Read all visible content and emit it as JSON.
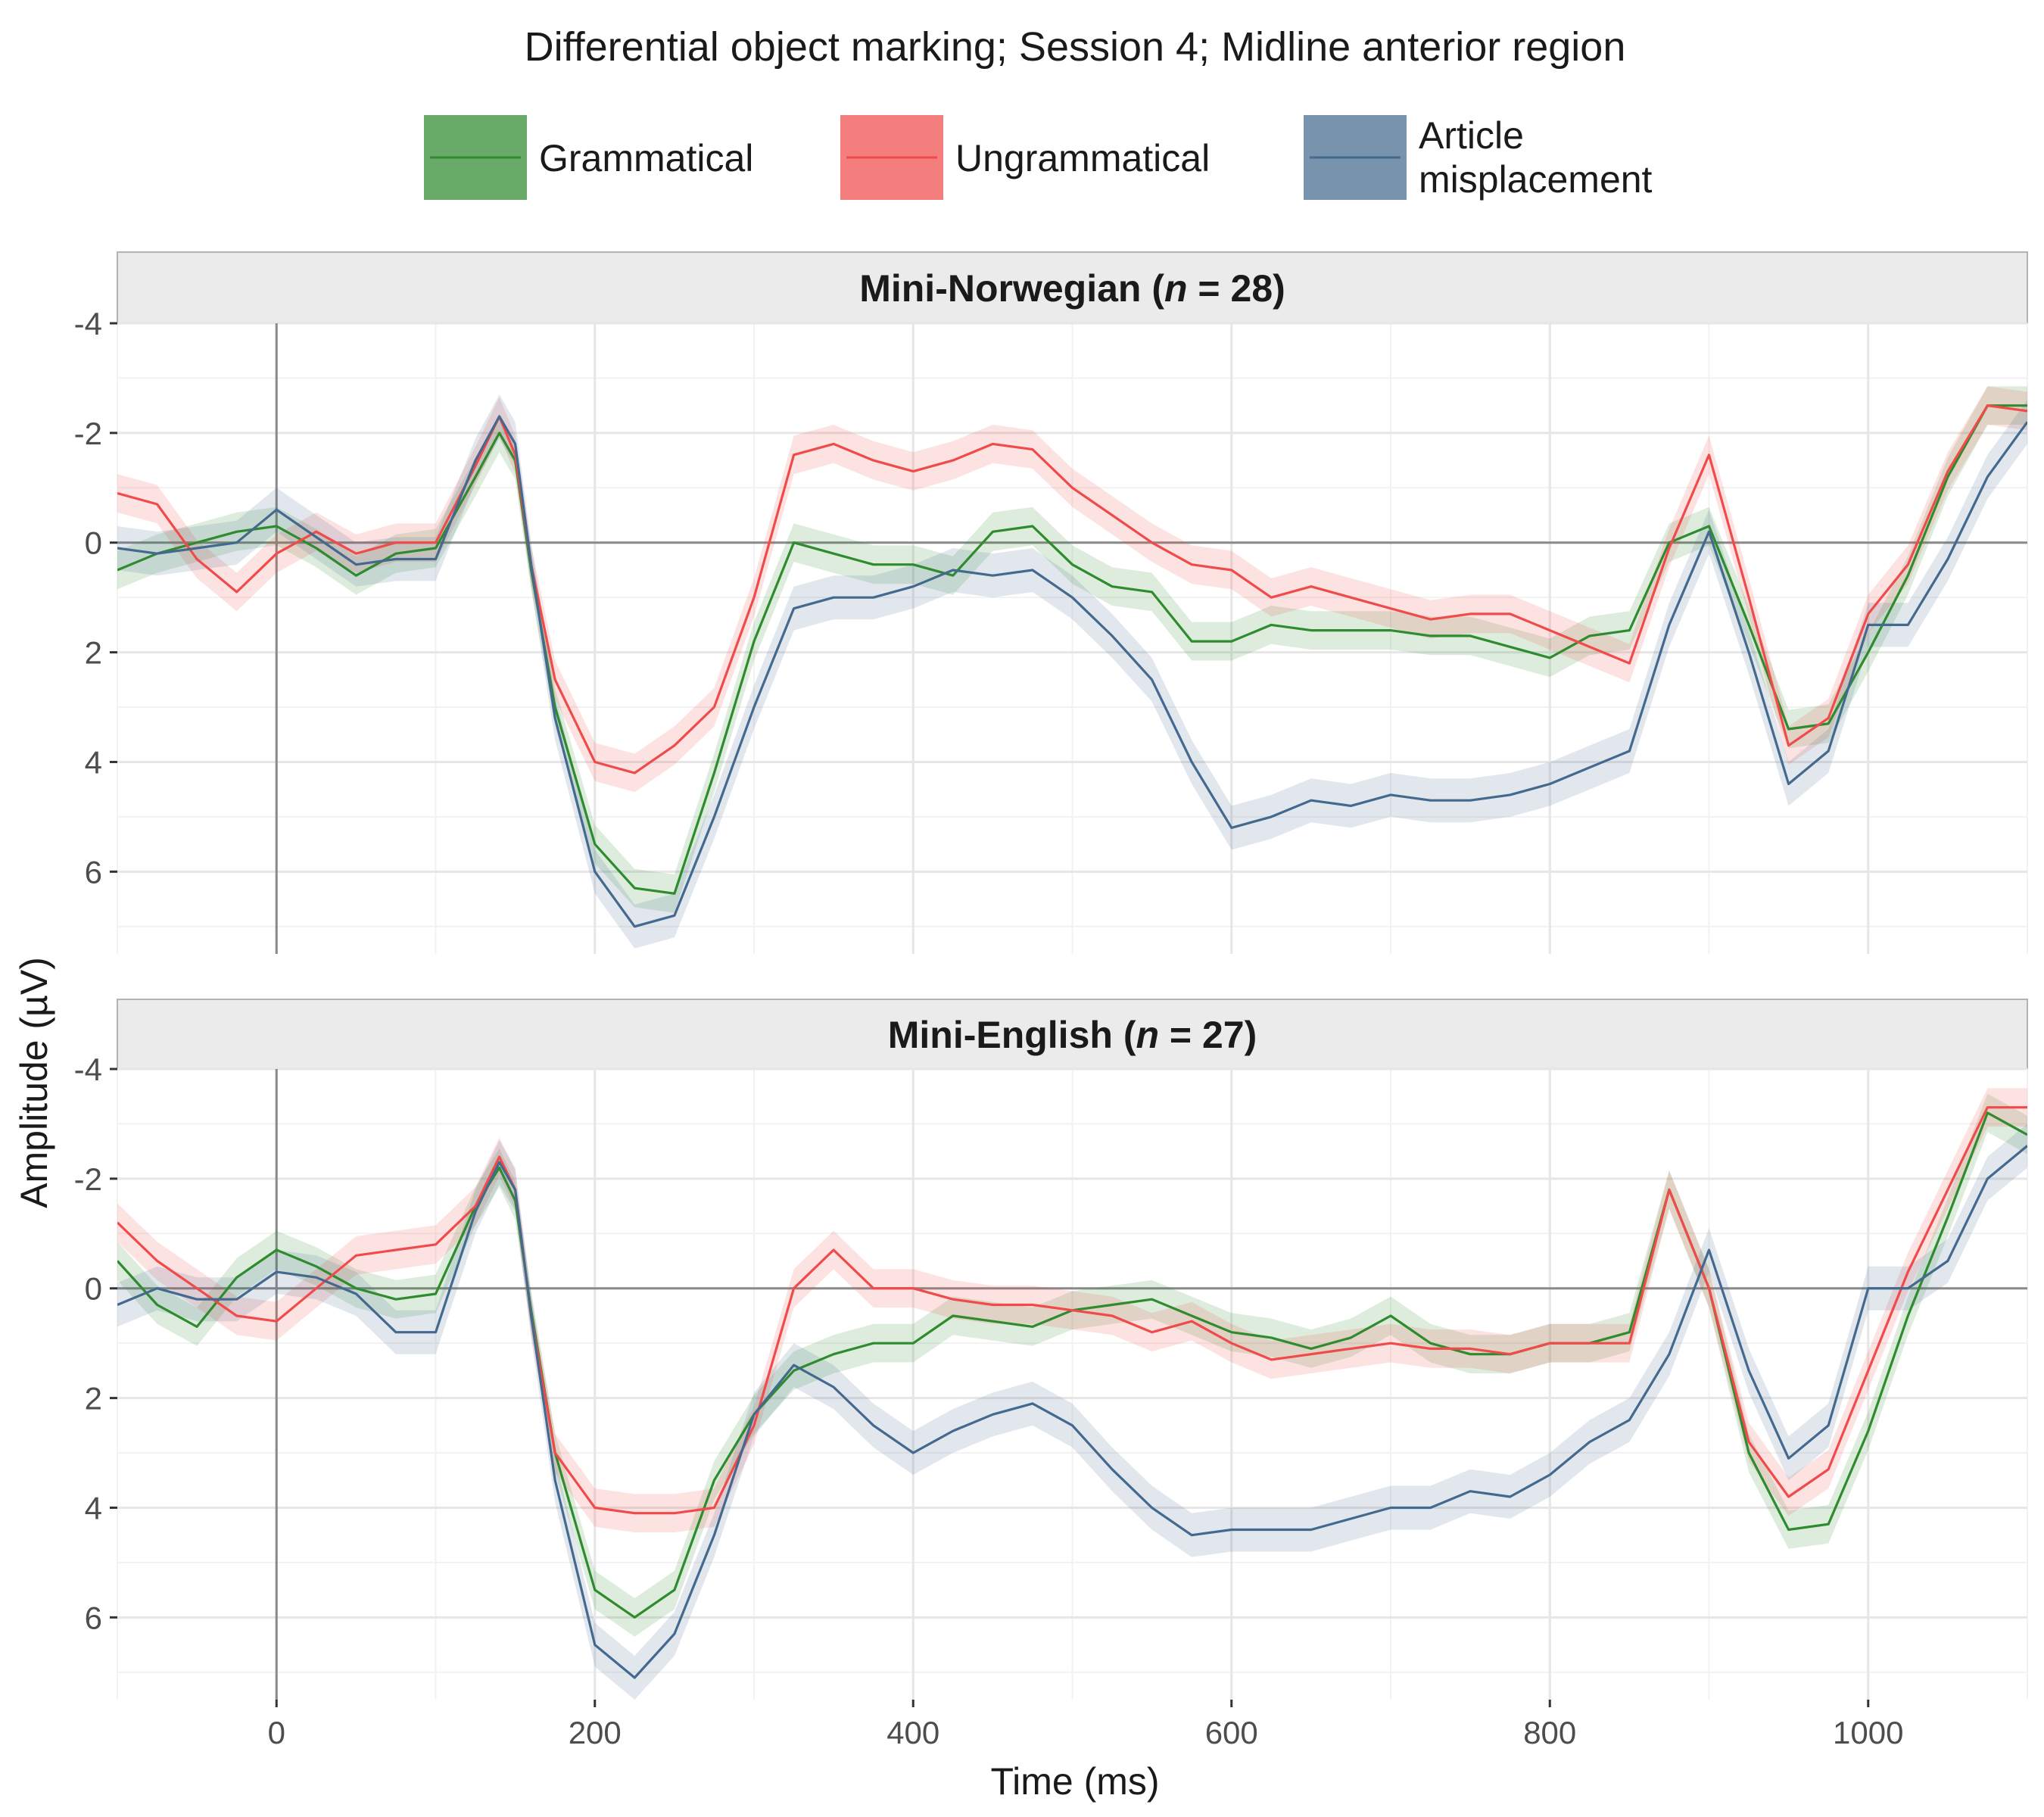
{
  "chart_data": {
    "type": "line",
    "title": "Differential object marking; Session 4; Midline anterior region",
    "xlabel": "Time (ms)",
    "ylabel": "Amplitude (µV)",
    "xlim": [
      -100,
      1100
    ],
    "ylim": [
      -4,
      7.5
    ],
    "y_reversed": true,
    "x_ticks": [
      0,
      200,
      400,
      600,
      800,
      1000
    ],
    "y_ticks": [
      -4,
      -2,
      0,
      2,
      4,
      6
    ],
    "grid": true,
    "legend_position": "top",
    "legend": [
      {
        "label": "Grammatical",
        "color": "#2e8b2e"
      },
      {
        "label": "Ungrammatical",
        "color": "#f04b4b"
      },
      {
        "label": "Article misplacement",
        "label_lines": [
          "Article",
          "misplacement"
        ],
        "color": "#44698f"
      }
    ],
    "panels": [
      {
        "label_prefix": "Mini-Norwegian (",
        "label_n": "n",
        "label_suffix": " = 28)",
        "series": [
          {
            "name": "Grammatical",
            "color": "#2e8b2e",
            "x": [
              -100,
              -75,
              -50,
              -25,
              0,
              25,
              50,
              75,
              100,
              125,
              140,
              150,
              160,
              175,
              200,
              225,
              250,
              275,
              300,
              325,
              350,
              375,
              400,
              425,
              450,
              475,
              500,
              525,
              550,
              575,
              600,
              625,
              650,
              675,
              700,
              725,
              750,
              775,
              800,
              825,
              850,
              875,
              900,
              925,
              950,
              975,
              1000,
              1025,
              1050,
              1075,
              1100
            ],
            "y": [
              0.5,
              0.2,
              0,
              -0.2,
              -0.3,
              0.1,
              0.6,
              0.2,
              0.1,
              -1.2,
              -2,
              -1.5,
              0.5,
              3,
              5.5,
              6.3,
              6.4,
              4.2,
              1.8,
              0,
              0.2,
              0.4,
              0.4,
              0.6,
              -0.2,
              -0.3,
              0.4,
              0.8,
              0.9,
              1.8,
              1.8,
              1.5,
              1.6,
              1.6,
              1.6,
              1.7,
              1.7,
              1.9,
              2.1,
              1.7,
              1.6,
              0,
              -0.3,
              1.5,
              3.4,
              3.3,
              2,
              0.6,
              -1.2,
              -2.5,
              -2.5
            ],
            "band": 0.35
          },
          {
            "name": "Ungrammatical",
            "color": "#f04b4b",
            "x": [
              -100,
              -75,
              -50,
              -25,
              0,
              25,
              50,
              75,
              100,
              125,
              140,
              150,
              160,
              175,
              200,
              225,
              250,
              275,
              300,
              325,
              350,
              375,
              400,
              425,
              450,
              475,
              500,
              525,
              550,
              575,
              600,
              625,
              650,
              675,
              700,
              725,
              750,
              775,
              800,
              825,
              850,
              875,
              900,
              925,
              950,
              975,
              1000,
              1025,
              1050,
              1075,
              1100
            ],
            "y": [
              -0.9,
              -0.7,
              0.3,
              0.9,
              0.2,
              -0.2,
              0.2,
              0,
              0,
              -1.4,
              -2.3,
              -1.6,
              0.4,
              2.5,
              4,
              4.2,
              3.7,
              3,
              1,
              -1.6,
              -1.8,
              -1.5,
              -1.3,
              -1.5,
              -1.8,
              -1.7,
              -1,
              -0.5,
              0,
              0.4,
              0.5,
              1,
              0.8,
              1,
              1.2,
              1.4,
              1.3,
              1.3,
              1.6,
              1.9,
              2.2,
              0.1,
              -1.6,
              1,
              3.7,
              3.2,
              1.3,
              0.4,
              -1.3,
              -2.5,
              -2.4
            ],
            "band": 0.35
          },
          {
            "name": "Article misplacement",
            "color": "#44698f",
            "x": [
              -100,
              -75,
              -50,
              -25,
              0,
              25,
              50,
              75,
              100,
              125,
              140,
              150,
              160,
              175,
              200,
              225,
              250,
              275,
              300,
              325,
              350,
              375,
              400,
              425,
              450,
              475,
              500,
              525,
              550,
              575,
              600,
              625,
              650,
              675,
              700,
              725,
              750,
              775,
              800,
              825,
              850,
              875,
              900,
              925,
              950,
              975,
              1000,
              1025,
              1050,
              1075,
              1100
            ],
            "y": [
              0.1,
              0.2,
              0.1,
              0,
              -0.6,
              -0.1,
              0.4,
              0.3,
              0.3,
              -1.5,
              -2.3,
              -1.8,
              0.4,
              3.2,
              6,
              7,
              6.8,
              5,
              3,
              1.2,
              1,
              1,
              0.8,
              0.5,
              0.6,
              0.5,
              1,
              1.7,
              2.5,
              4,
              5.2,
              5,
              4.7,
              4.8,
              4.6,
              4.7,
              4.7,
              4.6,
              4.4,
              4.1,
              3.8,
              1.5,
              -0.2,
              2,
              4.4,
              3.8,
              1.5,
              1.5,
              0.3,
              -1.2,
              -2.2
            ],
            "band": 0.4
          }
        ]
      },
      {
        "label_prefix": "Mini-English (",
        "label_n": "n",
        "label_suffix": " = 27)",
        "series": [
          {
            "name": "Grammatical",
            "color": "#2e8b2e",
            "x": [
              -100,
              -75,
              -50,
              -25,
              0,
              25,
              50,
              75,
              100,
              125,
              140,
              150,
              160,
              175,
              200,
              225,
              250,
              275,
              300,
              325,
              350,
              375,
              400,
              425,
              450,
              475,
              500,
              525,
              550,
              575,
              600,
              625,
              650,
              675,
              700,
              725,
              750,
              775,
              800,
              825,
              850,
              875,
              900,
              925,
              950,
              975,
              1000,
              1025,
              1050,
              1075,
              1100
            ],
            "y": [
              -0.5,
              0.3,
              0.7,
              -0.2,
              -0.7,
              -0.4,
              0,
              0.2,
              0.1,
              -1.5,
              -2.2,
              -1.6,
              0.4,
              3,
              5.5,
              6,
              5.5,
              3.5,
              2.3,
              1.5,
              1.2,
              1,
              1,
              0.5,
              0.6,
              0.7,
              0.4,
              0.3,
              0.2,
              0.5,
              0.8,
              0.9,
              1.1,
              0.9,
              0.5,
              1,
              1.2,
              1.2,
              1,
              1,
              0.8,
              -1.8,
              0,
              3,
              4.4,
              4.3,
              2.6,
              0.5,
              -1.3,
              -3.2,
              -2.8
            ],
            "band": 0.35
          },
          {
            "name": "Ungrammatical",
            "color": "#f04b4b",
            "x": [
              -100,
              -75,
              -50,
              -25,
              0,
              25,
              50,
              75,
              100,
              125,
              140,
              150,
              160,
              175,
              200,
              225,
              250,
              275,
              300,
              325,
              350,
              375,
              400,
              425,
              450,
              475,
              500,
              525,
              550,
              575,
              600,
              625,
              650,
              675,
              700,
              725,
              750,
              775,
              800,
              825,
              850,
              875,
              900,
              925,
              950,
              975,
              1000,
              1025,
              1050,
              1075,
              1100
            ],
            "y": [
              -1.2,
              -0.5,
              0,
              0.5,
              0.6,
              0,
              -0.6,
              -0.7,
              -0.8,
              -1.5,
              -2.4,
              -1.8,
              0.5,
              3,
              4,
              4.1,
              4.1,
              4,
              2.5,
              0,
              -0.7,
              0,
              0,
              0.2,
              0.3,
              0.3,
              0.4,
              0.5,
              0.8,
              0.6,
              1,
              1.3,
              1.2,
              1.1,
              1,
              1.1,
              1.1,
              1.2,
              1,
              1,
              1,
              -1.8,
              0,
              2.8,
              3.8,
              3.3,
              1.5,
              -0.3,
              -1.8,
              -3.3,
              -3.3
            ],
            "band": 0.35
          },
          {
            "name": "Article misplacement",
            "color": "#44698f",
            "x": [
              -100,
              -75,
              -50,
              -25,
              0,
              25,
              50,
              75,
              100,
              125,
              140,
              150,
              160,
              175,
              200,
              225,
              250,
              275,
              300,
              325,
              350,
              375,
              400,
              425,
              450,
              475,
              500,
              525,
              550,
              575,
              600,
              625,
              650,
              675,
              700,
              725,
              750,
              775,
              800,
              825,
              850,
              875,
              900,
              925,
              950,
              975,
              1000,
              1025,
              1050,
              1075,
              1100
            ],
            "y": [
              0.3,
              0,
              0.2,
              0.2,
              -0.3,
              -0.2,
              0.1,
              0.8,
              0.8,
              -1.4,
              -2.3,
              -1.8,
              0.5,
              3.5,
              6.5,
              7.1,
              6.3,
              4.5,
              2.3,
              1.4,
              1.8,
              2.5,
              3,
              2.6,
              2.3,
              2.1,
              2.5,
              3.3,
              4,
              4.5,
              4.4,
              4.4,
              4.4,
              4.2,
              4,
              4,
              3.7,
              3.8,
              3.4,
              2.8,
              2.4,
              1.2,
              -0.7,
              1.5,
              3.1,
              2.5,
              0,
              0,
              -0.5,
              -2,
              -2.6
            ],
            "band": 0.4
          }
        ]
      }
    ]
  }
}
